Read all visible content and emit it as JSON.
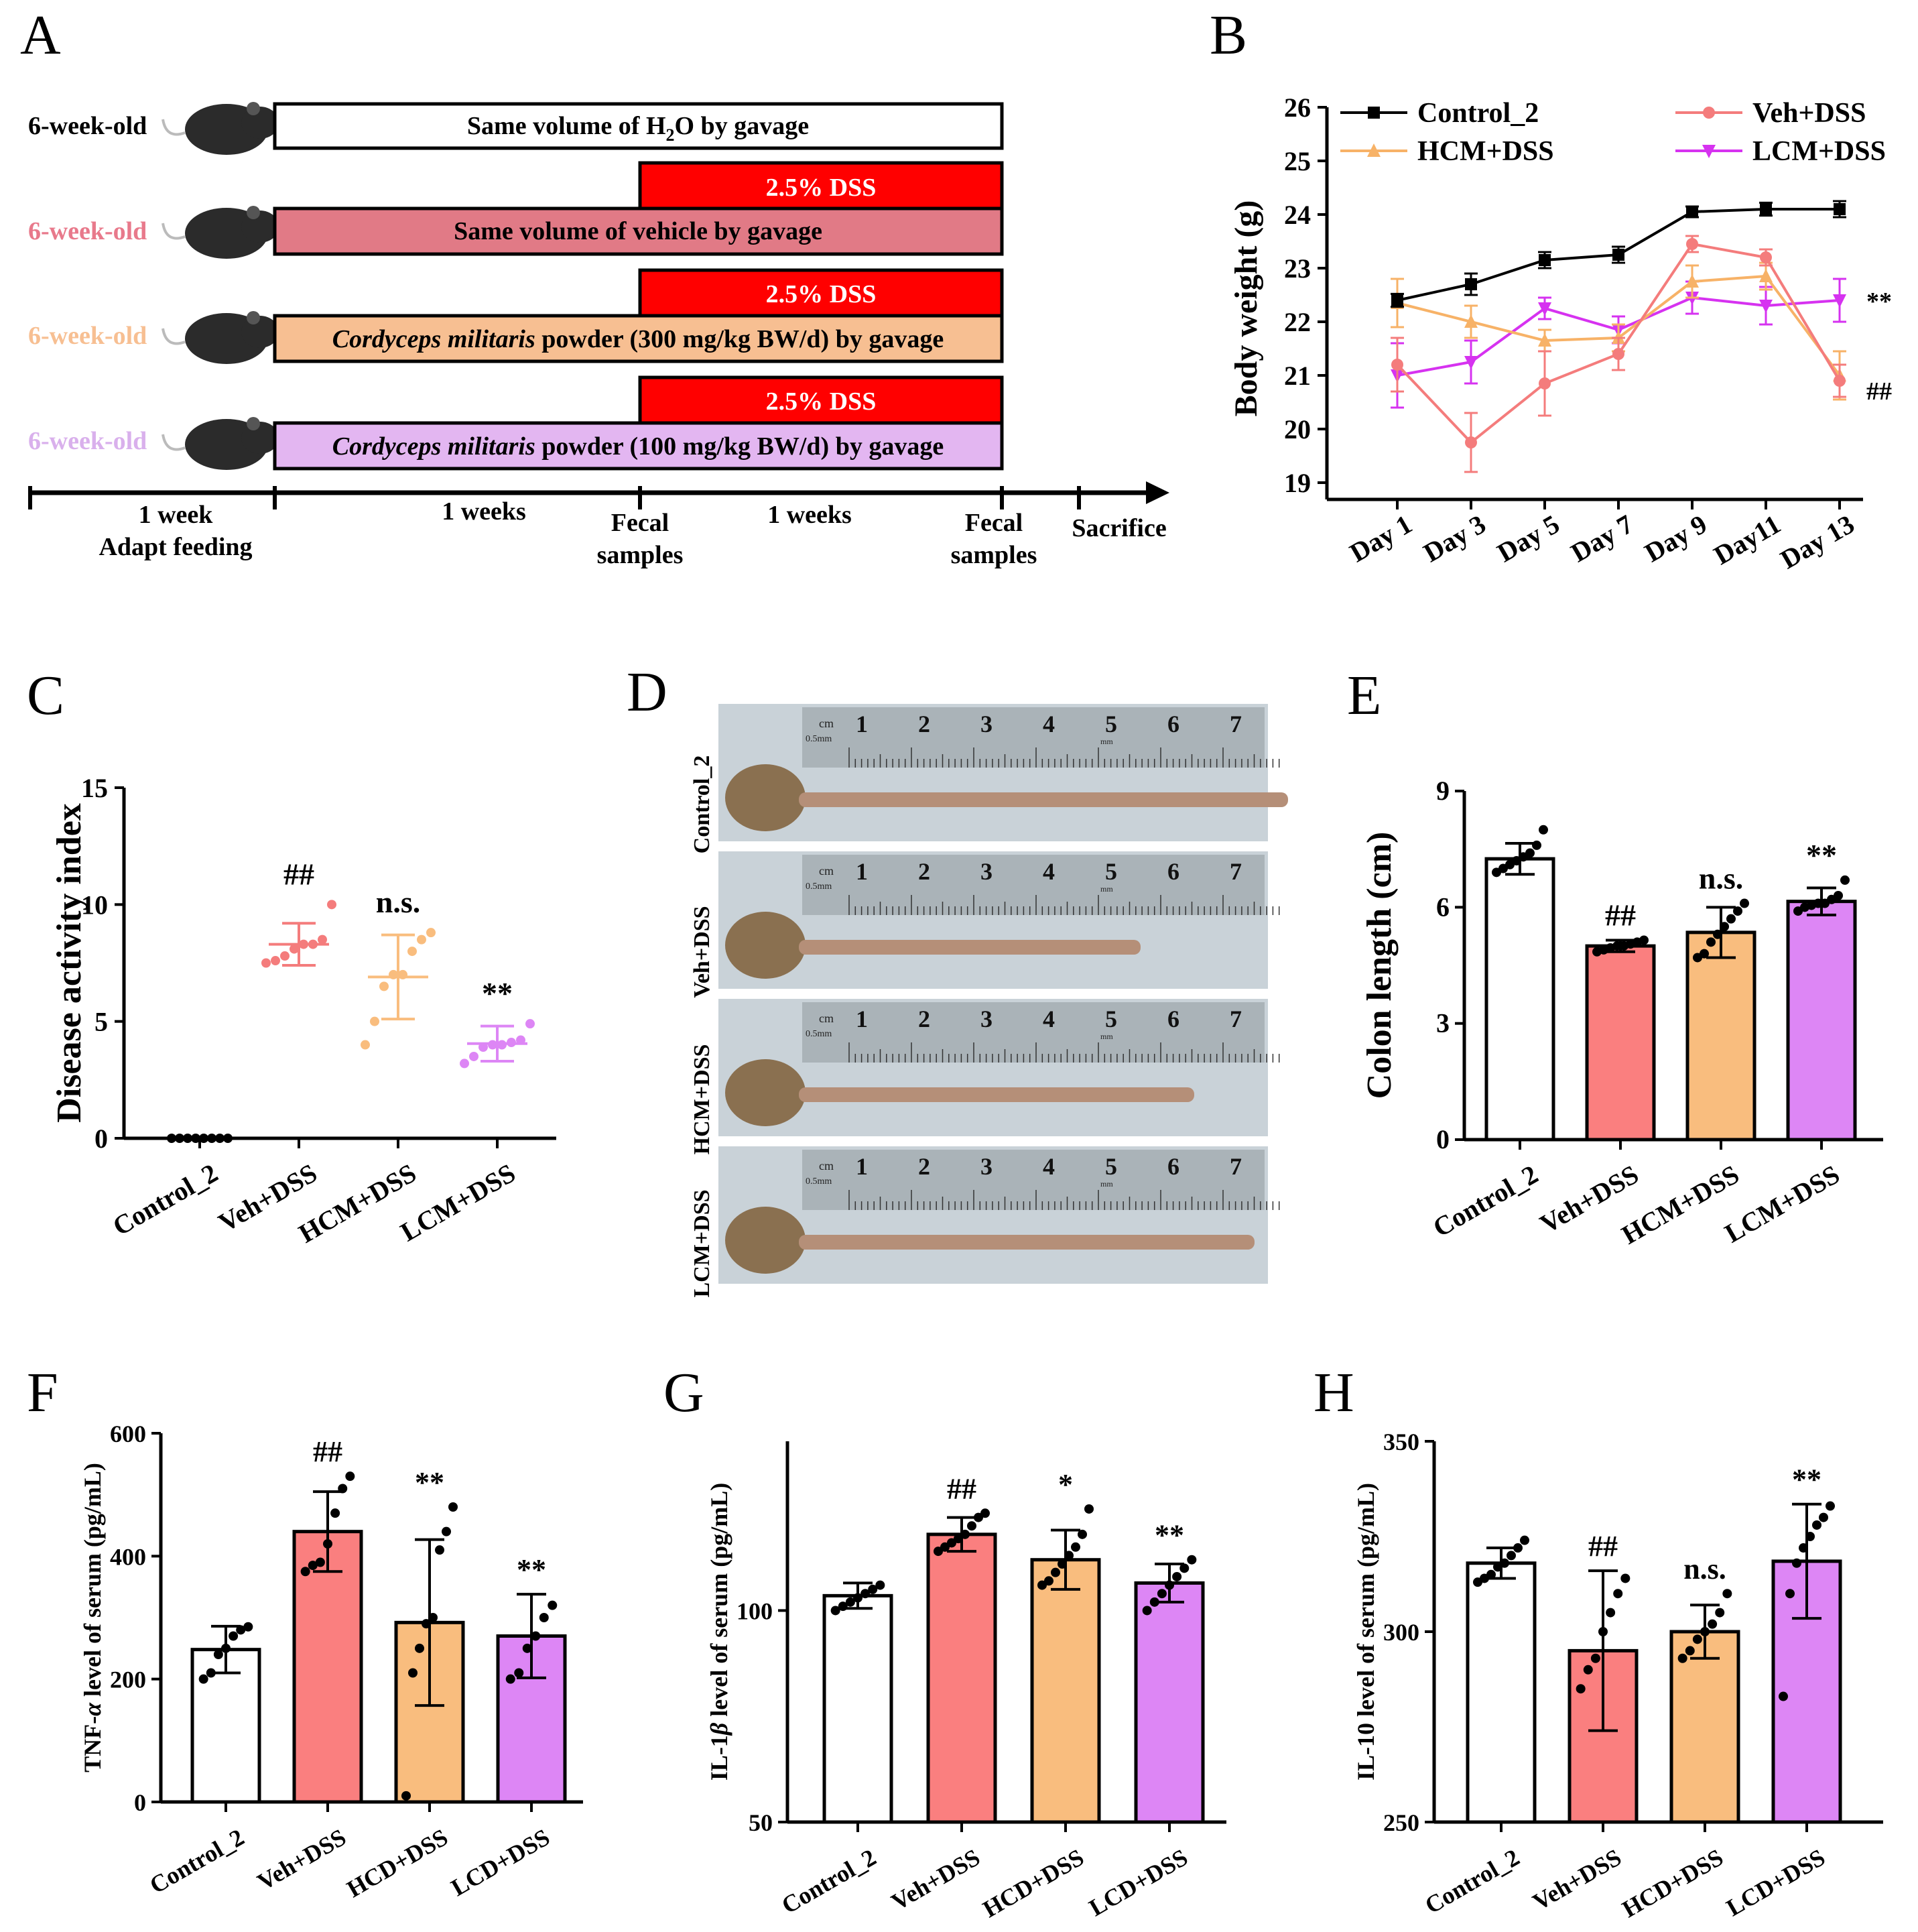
{
  "panels": {
    "A": "A",
    "B": "B",
    "C": "C",
    "D": "D",
    "E": "E",
    "F": "F",
    "G": "G",
    "H": "H"
  },
  "colors": {
    "control": "#ffffff",
    "veh": "#fa7f7f",
    "hcm": "#f9bd7e",
    "lcm": "#dd86f5",
    "dss_red": "#ff0000",
    "vehicle_bar": "#e17a86",
    "hcm_bar": "#f7bf92",
    "lcm_bar": "#e3b6f1",
    "label_veh": "#e8798b",
    "label_hcm": "#f7bf92",
    "label_lcm": "#d9b0ec",
    "line_hcm": "#f7b267",
    "line_veh": "#f47c7c",
    "line_lcm": "#d632f0"
  },
  "timeline": {
    "rows": [
      {
        "age": "6-week-old",
        "sub": "",
        "pre": "Same volume of H",
        "post": "O by gavage",
        "italic": "",
        "main": ""
      },
      {
        "age": "6-week-old",
        "dss": "2.5% DSS",
        "pre": "",
        "post": "",
        "italic": "",
        "main": "Same volume of vehicle by gavage"
      },
      {
        "age": "6-week-old",
        "dss": "2.5% DSS",
        "pre": "",
        "post": "",
        "italic": "Cordyceps militaris",
        "main": " powder (300 mg/kg BW/d) by gavage"
      },
      {
        "age": "6-week-old",
        "dss": "2.5% DSS",
        "pre": "",
        "post": "",
        "italic": "Cordyceps militaris",
        "main": " powder (100 mg/kg BW/d) by gavage"
      }
    ],
    "h2o_sub": "2",
    "axis": {
      "week1": "1 week",
      "adapt": "Adapt feeding",
      "weeks1": "1 weeks",
      "fecal1a": "Fecal",
      "fecal1b": "samples",
      "weeks2": "1 weeks",
      "fecal2a": "Fecal",
      "fecal2b": "samples",
      "sacrifice": "Sacrifice"
    }
  },
  "chart_data": [
    {
      "panel": "B",
      "type": "line",
      "ylabel": "Body weight (g)",
      "ylim": [
        19,
        26
      ],
      "yticks": [
        "19",
        "20",
        "21",
        "22",
        "23",
        "24",
        "25",
        "26"
      ],
      "x": [
        "Day 1",
        "Day 3",
        "Day 5",
        "Day 7",
        "Day 9",
        "Day11",
        "Day 13"
      ],
      "series": [
        {
          "name": "Control_2",
          "values": [
            22.4,
            22.7,
            23.15,
            23.25,
            24.05,
            24.1,
            24.1
          ],
          "err": [
            0.12,
            0.2,
            0.15,
            0.15,
            0.1,
            0.12,
            0.15
          ],
          "marker": "square",
          "color": "#000000"
        },
        {
          "name": "Veh+DSS",
          "values": [
            21.2,
            19.75,
            20.85,
            21.4,
            23.45,
            23.2,
            20.9
          ],
          "err": [
            0.5,
            0.55,
            0.6,
            0.3,
            0.15,
            0.15,
            0.3
          ],
          "marker": "circle",
          "color": "#f47c7c"
        },
        {
          "name": "HCM+DSS",
          "values": [
            22.35,
            22.0,
            21.65,
            21.7,
            22.75,
            22.85,
            21.0
          ],
          "err": [
            0.45,
            0.3,
            0.2,
            0.25,
            0.3,
            0.25,
            0.45
          ],
          "marker": "triangle",
          "color": "#f7b267"
        },
        {
          "name": "LCM+DSS",
          "values": [
            21.0,
            21.25,
            22.25,
            21.85,
            22.45,
            22.3,
            22.4
          ],
          "err": [
            0.6,
            0.4,
            0.2,
            0.25,
            0.3,
            0.35,
            0.4
          ],
          "marker": "triangle-down",
          "color": "#d632f0"
        }
      ],
      "annotations": [
        {
          "text": "**",
          "series": "LCM+DSS"
        },
        {
          "text": "##",
          "series": "Veh+DSS"
        }
      ]
    },
    {
      "panel": "C",
      "type": "scatter",
      "ylabel": "Disease activity index",
      "ylim": [
        0,
        15
      ],
      "yticks": [
        "0",
        "5",
        "10",
        "15"
      ],
      "categories": [
        "Control_2",
        "Veh+DSS",
        "HCM+DSS",
        "LCM+DSS"
      ],
      "means": [
        0,
        8.3,
        6.9,
        4.05
      ],
      "sd": [
        0,
        0.9,
        1.8,
        0.75
      ],
      "points": [
        [
          0,
          0,
          0,
          0,
          0,
          0,
          0,
          0
        ],
        [
          7.5,
          7.6,
          7.8,
          8.1,
          8.3,
          8.3,
          8.5,
          10
        ],
        [
          4,
          5,
          6.5,
          7,
          7,
          8,
          8.5,
          8.8
        ],
        [
          3.2,
          3.5,
          3.9,
          4,
          4,
          4.1,
          4.2,
          4.9
        ]
      ],
      "sig": [
        "",
        "##",
        "n.s.",
        "**"
      ],
      "colors": [
        "#000000",
        "#f47c7c",
        "#f9bd7e",
        "#dd86f5"
      ]
    },
    {
      "panel": "E",
      "type": "bar",
      "ylabel": "Colon length (cm)",
      "ylim": [
        0,
        9
      ],
      "yticks": [
        "0",
        "3",
        "6",
        "9"
      ],
      "categories": [
        "Control_2",
        "Veh+DSS",
        "HCM+DSS",
        "LCM+DSS"
      ],
      "values": [
        7.25,
        5.0,
        5.35,
        6.15
      ],
      "sd": [
        0.4,
        0.15,
        0.65,
        0.35
      ],
      "points": [
        [
          6.9,
          7.0,
          7.1,
          7.2,
          7.3,
          7.4,
          7.6,
          8.0
        ],
        [
          4.85,
          4.9,
          4.95,
          5.0,
          5.0,
          5.05,
          5.1,
          5.15
        ],
        [
          4.7,
          4.8,
          5.1,
          5.3,
          5.5,
          5.7,
          5.9,
          6.1
        ],
        [
          5.9,
          6.0,
          6.05,
          6.1,
          6.1,
          6.2,
          6.3,
          6.7
        ]
      ],
      "sig": [
        "",
        "##",
        "n.s.",
        "**"
      ],
      "fills": [
        "#ffffff",
        "#fa7f7f",
        "#f9bd7e",
        "#dd86f5"
      ]
    },
    {
      "panel": "F",
      "type": "bar",
      "ylabel": "TNF-α level of serum (pg/mL)",
      "ylabel_pre": "TNF-",
      "ylabel_greek": "α",
      "ylabel_post": " level of serum (pg/mL)",
      "ylim": [
        0,
        600
      ],
      "yticks": [
        "0",
        "200",
        "400",
        "600"
      ],
      "categories": [
        "Control_2",
        "Veh+DSS",
        "HCD+DSS",
        "LCD+DSS"
      ],
      "values": [
        248,
        440,
        292,
        270
      ],
      "sd": [
        38,
        65,
        135,
        68
      ],
      "points": [
        [
          200,
          210,
          240,
          250,
          270,
          280,
          285
        ],
        [
          375,
          385,
          390,
          420,
          470,
          510,
          530
        ],
        [
          10,
          210,
          250,
          290,
          300,
          410,
          440,
          480
        ],
        [
          200,
          210,
          250,
          270,
          300,
          320
        ]
      ],
      "sig": [
        "",
        "##",
        "**",
        "**"
      ],
      "fills": [
        "#ffffff",
        "#fa7f7f",
        "#f9bd7e",
        "#dd86f5"
      ]
    },
    {
      "panel": "G",
      "type": "bar",
      "ylabel": "IL-1β level of serum (pg/mL)",
      "ylabel_pre": "IL-1",
      "ylabel_greek": "β",
      "ylabel_post": " level of serum (pg/mL)",
      "ylim": [
        50,
        140
      ],
      "yticks": [
        "50",
        "100"
      ],
      "categories": [
        "Control_2",
        "Veh+DSS",
        "HCD+DSS",
        "LCD+DSS"
      ],
      "values": [
        103.5,
        118,
        112,
        106.5
      ],
      "sd": [
        3,
        4,
        7,
        4.5
      ],
      "points": [
        [
          100,
          101,
          102,
          103,
          104,
          105,
          106
        ],
        [
          114,
          115,
          116,
          117,
          118,
          120,
          122,
          123
        ],
        [
          106,
          107,
          109,
          111,
          113,
          115,
          118,
          124
        ],
        [
          100,
          102,
          104,
          106,
          108,
          110,
          112
        ]
      ],
      "sig": [
        "",
        "##",
        "*",
        "**"
      ],
      "fills": [
        "#ffffff",
        "#fa7f7f",
        "#f9bd7e",
        "#dd86f5"
      ]
    },
    {
      "panel": "H",
      "type": "bar",
      "ylabel": "IL-10 level of serum (pg/mL)",
      "ylabel_pre": "IL-10 level of serum (pg/mL)",
      "ylabel_greek": "",
      "ylabel_post": "",
      "ylim": [
        250,
        350
      ],
      "yticks": [
        "250",
        "300",
        "350"
      ],
      "categories": [
        "Control_2",
        "Veh+DSS",
        "HCD+DSS",
        "LCD+DSS"
      ],
      "values": [
        318,
        295,
        300,
        318.5
      ],
      "sd": [
        4,
        21,
        7,
        15
      ],
      "points": [
        [
          313,
          314,
          315,
          317,
          318,
          320,
          322,
          324
        ],
        [
          285,
          290,
          293,
          300,
          305,
          310,
          314
        ],
        [
          293,
          295,
          298,
          300,
          302,
          305,
          310
        ],
        [
          283,
          310,
          318,
          322,
          325,
          328,
          330,
          333
        ]
      ],
      "sig": [
        "",
        "##",
        "n.s.",
        "**"
      ],
      "fills": [
        "#ffffff",
        "#fa7f7f",
        "#f9bd7e",
        "#dd86f5"
      ]
    }
  ],
  "photo": {
    "rows": [
      "Control_2",
      "Veh+DSS",
      "HCM+DSS",
      "LCM+DSS"
    ],
    "ruler_numbers": [
      "1",
      "2",
      "3",
      "4",
      "5",
      "6",
      "7"
    ],
    "ruler_cm": "cm",
    "ruler_mm": "0.5mm",
    "ruler_mm2": "mm"
  }
}
